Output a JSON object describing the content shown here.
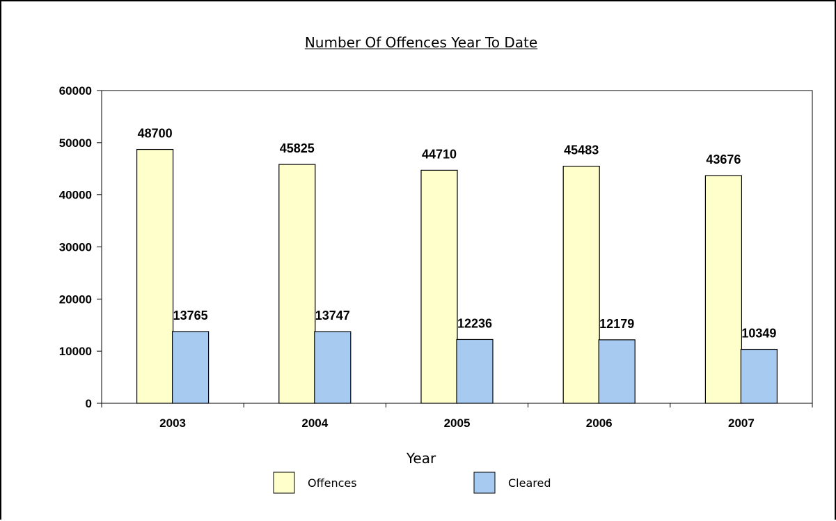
{
  "chart_data": {
    "type": "bar",
    "title": "Number Of Offences Year To Date",
    "xlabel": "Year",
    "ylabel": "",
    "ylim": [
      0,
      60000
    ],
    "yticks": [
      0,
      10000,
      20000,
      30000,
      40000,
      50000,
      60000
    ],
    "categories": [
      "2003",
      "2004",
      "2005",
      "2006",
      "2007"
    ],
    "series": [
      {
        "name": "Offences",
        "values": [
          48700,
          45825,
          44710,
          45483,
          43676
        ],
        "color": "#FFFFCC"
      },
      {
        "name": "Cleared",
        "values": [
          13765,
          13747,
          12236,
          12179,
          10349
        ],
        "color": "#A6CAF0"
      }
    ],
    "data_labels": true,
    "grid": false,
    "legend": "bottom"
  }
}
